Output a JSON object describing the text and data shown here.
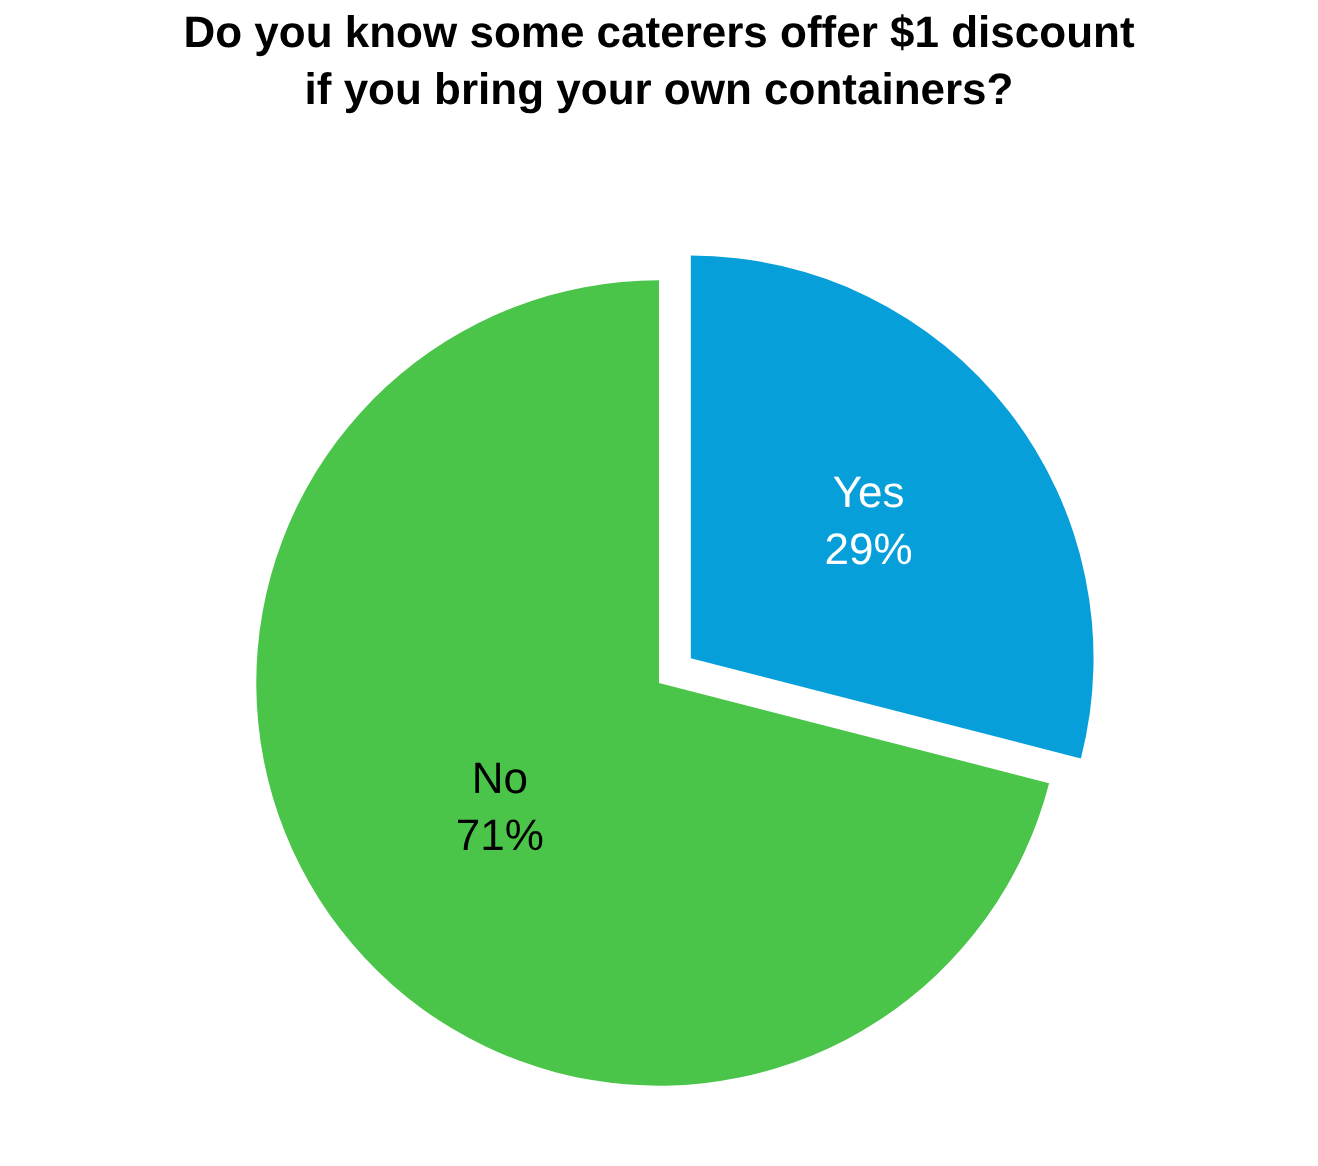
{
  "chart_data": {
    "type": "pie",
    "title": "Do you know some caterers offer $1 discount\nif you bring your own containers?",
    "categories": [
      "Yes",
      "No"
    ],
    "values": [
      29,
      71
    ],
    "value_labels": [
      "29%",
      "71%"
    ],
    "colors": [
      "#069fd9",
      "#4ac54a"
    ],
    "legend": false
  }
}
